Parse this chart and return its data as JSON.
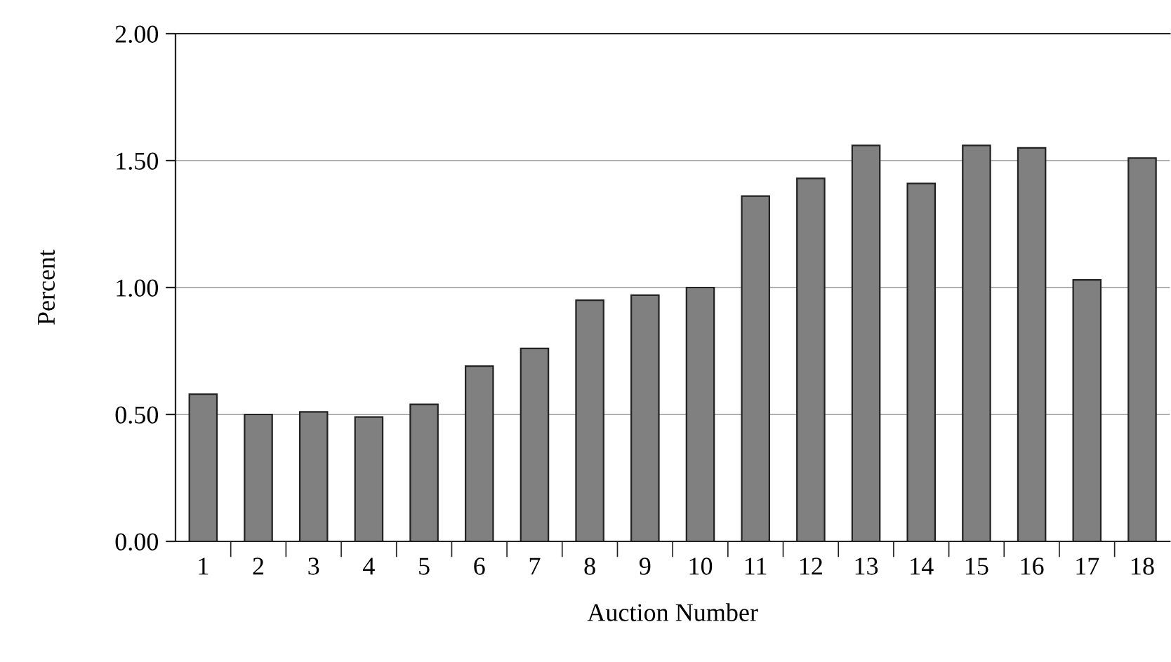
{
  "chart_data": {
    "type": "bar",
    "xlabel": "Auction Number",
    "ylabel": "Percent",
    "categories": [
      "1",
      "2",
      "3",
      "4",
      "5",
      "6",
      "7",
      "8",
      "9",
      "10",
      "11",
      "12",
      "13",
      "14",
      "15",
      "16",
      "17",
      "18"
    ],
    "values": [
      0.58,
      0.5,
      0.51,
      0.49,
      0.54,
      0.69,
      0.76,
      0.95,
      0.97,
      1.0,
      1.36,
      1.43,
      1.56,
      1.41,
      1.56,
      1.55,
      1.03,
      1.51
    ],
    "color": "#808080",
    "ylim": [
      0,
      2
    ],
    "yticks": [
      {
        "value": 0,
        "label": "0.00"
      },
      {
        "value": 0.5,
        "label": "0.50"
      },
      {
        "value": 1,
        "label": "1.00"
      },
      {
        "value": 1.5,
        "label": "1.50"
      },
      {
        "value": 2,
        "label": "2.00"
      }
    ],
    "grid": "y",
    "legend": false
  }
}
